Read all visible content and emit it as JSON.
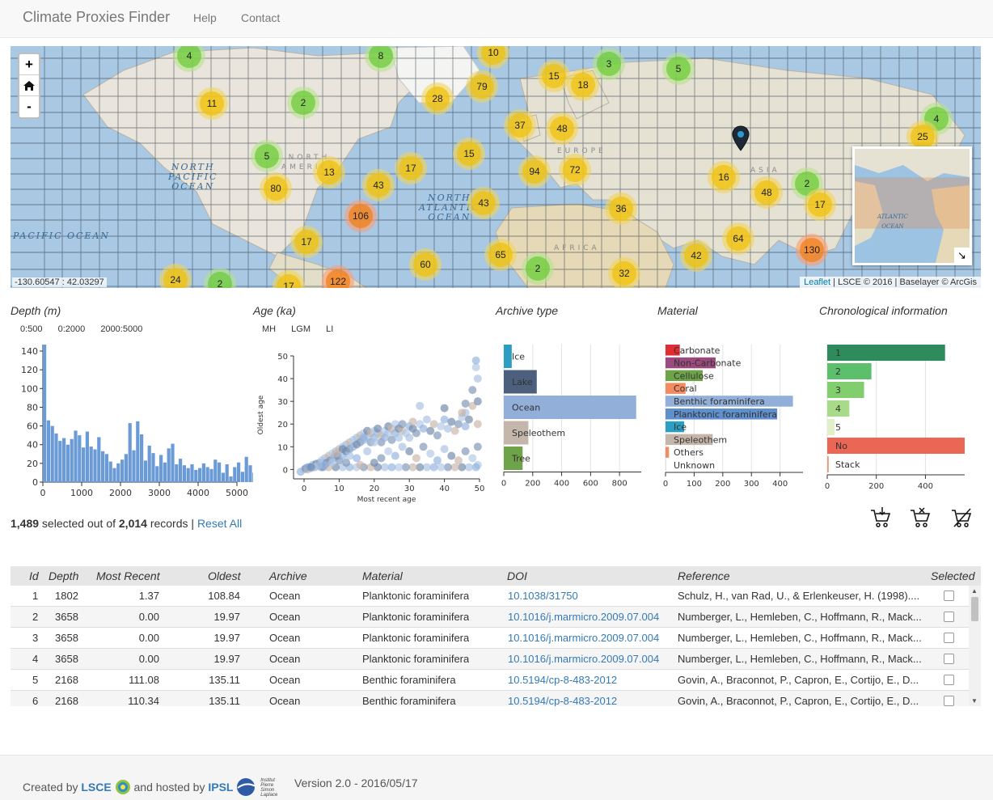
{
  "navbar": {
    "brand": "Climate Proxies Finder",
    "links": [
      "Help",
      "Contact"
    ]
  },
  "map": {
    "zoom_in": "+",
    "home_icon": "home-icon",
    "zoom_out": "-",
    "coordinates": "-130.60547 : 42.03297",
    "attribution_link": "Leaflet",
    "attribution_rest": " | LSCE © 2016 | Baselayer © ArcGis",
    "labels": {
      "north_pacific": "NORTH\nPACIFIC\nOCEAN",
      "north_atlantic": "NORTH\nATLANTIC\nOCEAN",
      "pacific": "PACIFIC OCEAN",
      "north_america": "NORTH\nAMERICA",
      "europe": "EUROPE",
      "asia": "ASIA",
      "africa": "AFRICA",
      "minimap_ocean": "ATLANTIC\nOCEAN"
    },
    "clusters": [
      {
        "count": "4",
        "color": "g"
      },
      {
        "count": "8",
        "color": "g"
      },
      {
        "count": "10",
        "color": "y"
      },
      {
        "count": "3",
        "color": "g"
      },
      {
        "count": "5",
        "color": "g"
      },
      {
        "count": "11",
        "color": "y"
      },
      {
        "count": "2",
        "color": "g"
      },
      {
        "count": "28",
        "color": "y"
      },
      {
        "count": "79",
        "color": "y"
      },
      {
        "count": "15",
        "color": "y"
      },
      {
        "count": "18",
        "color": "y"
      },
      {
        "count": "37",
        "color": "y"
      },
      {
        "count": "48",
        "color": "y"
      },
      {
        "count": "4",
        "color": "g"
      },
      {
        "count": "25",
        "color": "y"
      },
      {
        "count": "5",
        "color": "g"
      },
      {
        "count": "13",
        "color": "y"
      },
      {
        "count": "17",
        "color": "y"
      },
      {
        "count": "15",
        "color": "y"
      },
      {
        "count": "94",
        "color": "y"
      },
      {
        "count": "72",
        "color": "y"
      },
      {
        "count": "16",
        "color": "y"
      },
      {
        "count": "2",
        "color": "g"
      },
      {
        "count": "80",
        "color": "y"
      },
      {
        "count": "43",
        "color": "y"
      },
      {
        "count": "48",
        "color": "y"
      },
      {
        "count": "17",
        "color": "y"
      },
      {
        "count": "106",
        "color": "o"
      },
      {
        "count": "43",
        "color": "y"
      },
      {
        "count": "36",
        "color": "y"
      },
      {
        "count": "17",
        "color": "y"
      },
      {
        "count": "64",
        "color": "y"
      },
      {
        "count": "130",
        "color": "o"
      },
      {
        "count": "65",
        "color": "y"
      },
      {
        "count": "42",
        "color": "y"
      },
      {
        "count": "60",
        "color": "y"
      },
      {
        "count": "2",
        "color": "g"
      },
      {
        "count": "32",
        "color": "y"
      },
      {
        "count": "24",
        "color": "y"
      },
      {
        "count": "2",
        "color": "g"
      },
      {
        "count": "17",
        "color": "y"
      },
      {
        "count": "122",
        "color": "o"
      }
    ]
  },
  "panels": {
    "depth": {
      "title": "Depth (m)",
      "filters": [
        "0:500",
        "0:2000",
        "2000:5000"
      ]
    },
    "age": {
      "title": "Age (ka)",
      "filters": [
        "MH",
        "LGM",
        "LI"
      ]
    },
    "archive": {
      "title": "Archive type"
    },
    "material": {
      "title": "Material"
    },
    "chrono": {
      "title": "Chronological information"
    }
  },
  "chart_data": [
    {
      "type": "bar",
      "title": "Depth (m)",
      "xlabel": "",
      "ylabel": "",
      "xlim": [
        0,
        5000
      ],
      "ylim": [
        0,
        140
      ],
      "bin_width": 100,
      "xticks": [
        0,
        1000,
        2000,
        3000,
        4000,
        5000
      ],
      "yticks": [
        0,
        20,
        40,
        60,
        80,
        100,
        120,
        140
      ],
      "values": [
        148,
        66,
        60,
        52,
        44,
        47,
        40,
        46,
        55,
        50,
        37,
        54,
        38,
        35,
        48,
        33,
        30,
        22,
        15,
        20,
        24,
        30,
        63,
        34,
        65,
        51,
        23,
        39,
        31,
        17,
        29,
        21,
        36,
        41,
        19,
        25,
        18,
        15,
        19,
        13,
        15,
        20,
        16,
        14,
        24,
        21,
        10,
        19,
        6,
        16,
        21,
        11,
        27,
        18,
        10,
        20,
        17,
        3,
        9,
        16,
        13,
        25,
        4,
        17,
        6,
        6,
        5,
        6,
        4,
        5
      ]
    },
    {
      "type": "scatter",
      "title": "Age (ka)",
      "xlabel": "Most recent age",
      "ylabel": "Oldest age",
      "xlim": [
        -3,
        50
      ],
      "ylim": [
        -2,
        50
      ],
      "xticks": [
        0,
        10,
        20,
        30,
        40,
        50
      ],
      "yticks": [
        0,
        10,
        20,
        30,
        40,
        50
      ],
      "points": [
        [
          -1,
          -1
        ],
        [
          0,
          0
        ],
        [
          0.5,
          0.5
        ],
        [
          1,
          0
        ],
        [
          1.5,
          1
        ],
        [
          2,
          0.5
        ],
        [
          2.5,
          2
        ],
        [
          3,
          1
        ],
        [
          3.5,
          2.5
        ],
        [
          4,
          2
        ],
        [
          4.5,
          3
        ],
        [
          5,
          4
        ],
        [
          5.5,
          1
        ],
        [
          6,
          5
        ],
        [
          6.5,
          3
        ],
        [
          7,
          6
        ],
        [
          7.5,
          4
        ],
        [
          8,
          7
        ],
        [
          8.5,
          5
        ],
        [
          9,
          8
        ],
        [
          9.5,
          6
        ],
        [
          10,
          9
        ],
        [
          10,
          4
        ],
        [
          11,
          10
        ],
        [
          11,
          6
        ],
        [
          12,
          11
        ],
        [
          12,
          8
        ],
        [
          13,
          12
        ],
        [
          13,
          9
        ],
        [
          14,
          13
        ],
        [
          14,
          10
        ],
        [
          15,
          14
        ],
        [
          15,
          11
        ],
        [
          16,
          15
        ],
        [
          16,
          12
        ],
        [
          17,
          16
        ],
        [
          17,
          13
        ],
        [
          18,
          15
        ],
        [
          18,
          17
        ],
        [
          19,
          16
        ],
        [
          19,
          12
        ],
        [
          20,
          17
        ],
        [
          20,
          14
        ],
        [
          21,
          16
        ],
        [
          21,
          18
        ],
        [
          22,
          15
        ],
        [
          22,
          12
        ],
        [
          23,
          17
        ],
        [
          23,
          14
        ],
        [
          24,
          16
        ],
        [
          24,
          19
        ],
        [
          25,
          18
        ],
        [
          25,
          13
        ],
        [
          26,
          20
        ],
        [
          26,
          16
        ],
        [
          27,
          14
        ],
        [
          27,
          18
        ],
        [
          28,
          17
        ],
        [
          28,
          20
        ],
        [
          29,
          16
        ],
        [
          30,
          19
        ],
        [
          30,
          14
        ],
        [
          31,
          18
        ],
        [
          31,
          21
        ],
        [
          32,
          16
        ],
        [
          33,
          20
        ],
        [
          34,
          18
        ],
        [
          35,
          22
        ],
        [
          36,
          17
        ],
        [
          37,
          20
        ],
        [
          38,
          15
        ],
        [
          39,
          19
        ],
        [
          40,
          22
        ],
        [
          41,
          18
        ],
        [
          42,
          21
        ],
        [
          43,
          17
        ],
        [
          44,
          20
        ],
        [
          45,
          23
        ],
        [
          46,
          19
        ],
        [
          46,
          25
        ],
        [
          47,
          22
        ],
        [
          48,
          28
        ],
        [
          48,
          35
        ],
        [
          49,
          45
        ],
        [
          49,
          48
        ],
        [
          49.5,
          40
        ],
        [
          49.5,
          30
        ],
        [
          49.5,
          20
        ],
        [
          49.5,
          10
        ],
        [
          49.5,
          2
        ],
        [
          49,
          1
        ],
        [
          47,
          1
        ],
        [
          45,
          1
        ],
        [
          43,
          1
        ],
        [
          41,
          1
        ],
        [
          39,
          1
        ],
        [
          37,
          1
        ],
        [
          35,
          1
        ],
        [
          33,
          1
        ],
        [
          31,
          1
        ],
        [
          29,
          1
        ],
        [
          27,
          1
        ],
        [
          25,
          1
        ],
        [
          23,
          1
        ],
        [
          21,
          1
        ],
        [
          19,
          1
        ],
        [
          17,
          1
        ],
        [
          15,
          1
        ],
        [
          13,
          1
        ],
        [
          11,
          1
        ],
        [
          9,
          1
        ],
        [
          7,
          1
        ],
        [
          5,
          1
        ],
        [
          3,
          1
        ],
        [
          1,
          1
        ],
        [
          33,
          28
        ],
        [
          40,
          27
        ],
        [
          45,
          25
        ],
        [
          46,
          29
        ],
        [
          20,
          12
        ],
        [
          17,
          14
        ],
        [
          13,
          6
        ],
        [
          11,
          9
        ],
        [
          9,
          7
        ],
        [
          22,
          5
        ],
        [
          24,
          8
        ],
        [
          26,
          6
        ],
        [
          28,
          10
        ],
        [
          30,
          8
        ],
        [
          32,
          5
        ],
        [
          34,
          10
        ],
        [
          36,
          7
        ],
        [
          38,
          4
        ],
        [
          40,
          9
        ],
        [
          42,
          6
        ],
        [
          44,
          4
        ],
        [
          46,
          8
        ],
        [
          48,
          5
        ],
        [
          15,
          5
        ],
        [
          18,
          8
        ],
        [
          20,
          3
        ],
        [
          16,
          2
        ],
        [
          12,
          3
        ],
        [
          8,
          3
        ],
        [
          6,
          2
        ],
        [
          4,
          1.5
        ],
        [
          2,
          1
        ]
      ]
    },
    {
      "type": "bar",
      "title": "Archive type",
      "orientation": "horizontal",
      "categories": [
        "Ice",
        "Lake",
        "Ocean",
        "Speleothem",
        "Tree"
      ],
      "values": [
        55,
        228,
        915,
        170,
        130
      ],
      "colors": [
        "#2b9ec2",
        "#4c5f7c",
        "#91afd9",
        "#c5b6ab",
        "#6fa34a"
      ],
      "xlim": [
        0,
        950
      ],
      "xticks": [
        0,
        200,
        400,
        600,
        800
      ]
    },
    {
      "type": "bar",
      "title": "Material",
      "orientation": "horizontal",
      "categories": [
        "Carbonate",
        "Non-Carbonate",
        "Cellulose",
        "Coral",
        "Benthic foraminifera",
        "Planktonic foraminifera",
        "Ice",
        "Speleothem",
        "Others",
        "Unknown"
      ],
      "values": [
        50,
        175,
        130,
        70,
        445,
        390,
        65,
        165,
        12,
        2
      ],
      "colors": [
        "#e02d34",
        "#9a4a7c",
        "#6fa34a",
        "#f48a5f",
        "#91afd9",
        "#5f8fcc",
        "#2b9ec2",
        "#c5b6ab",
        "#f48a5f",
        "#e0e0e0"
      ],
      "xlim": [
        0,
        480
      ],
      "xticks": [
        0,
        100,
        200,
        300,
        400
      ]
    },
    {
      "type": "bar",
      "title": "Chronological information",
      "orientation": "horizontal",
      "categories": [
        "1",
        "2",
        "3",
        "4",
        "5",
        "No",
        "Stack"
      ],
      "values": [
        480,
        180,
        150,
        90,
        30,
        560,
        6
      ],
      "colors": [
        "#2e8b5c",
        "#5bbf6b",
        "#82cd6e",
        "#a8db88",
        "#e1f0c8",
        "#ea6655",
        "#e89a7e"
      ],
      "xlim": [
        0,
        560
      ],
      "xticks": [
        0,
        200,
        400
      ]
    }
  ],
  "summary": {
    "selected": "1,489",
    "selected_text": " selected out of ",
    "total": "2,014",
    "records_text": " records | ",
    "reset": "Reset All"
  },
  "cart": {
    "add_icon": "cart-add-icon",
    "remove_icon": "cart-remove-icon",
    "clear_icon": "cart-clear-icon"
  },
  "table": {
    "headers": [
      "Id",
      "Depth",
      "Most Recent",
      "Oldest",
      "Archive",
      "Material",
      "DOI",
      "Reference",
      "Selected"
    ],
    "rows": [
      {
        "id": "1",
        "depth": "1802",
        "recent": "1.37",
        "oldest": "108.84",
        "archive": "Ocean",
        "material": "Planktonic foraminifera",
        "doi": "10.1038/31750",
        "reference": "Schulz, H., van Rad, U., & Erlenkeuser, H. (1998)...."
      },
      {
        "id": "2",
        "depth": "3658",
        "recent": "0.00",
        "oldest": "19.97",
        "archive": "Ocean",
        "material": "Planktonic foraminifera",
        "doi": "10.1016/j.marmicro.2009.07.004",
        "reference": "Numberger, L., Hemleben, C., Hoffmann, R., Mack..."
      },
      {
        "id": "3",
        "depth": "3658",
        "recent": "0.00",
        "oldest": "19.97",
        "archive": "Ocean",
        "material": "Planktonic foraminifera",
        "doi": "10.1016/j.marmicro.2009.07.004",
        "reference": "Numberger, L., Hemleben, C., Hoffmann, R., Mack..."
      },
      {
        "id": "4",
        "depth": "3658",
        "recent": "0.00",
        "oldest": "19.97",
        "archive": "Ocean",
        "material": "Planktonic foraminifera",
        "doi": "10.1016/j.marmicro.2009.07.004",
        "reference": "Numberger, L., Hemleben, C., Hoffmann, R., Mack..."
      },
      {
        "id": "5",
        "depth": "2168",
        "recent": "111.08",
        "oldest": "135.11",
        "archive": "Ocean",
        "material": "Benthic foraminifera",
        "doi": "10.5194/cp-8-483-2012",
        "reference": "Govin, A., Braconnot, P., Capron, E., Cortijo, E., D..."
      },
      {
        "id": "6",
        "depth": "2168",
        "recent": "110.34",
        "oldest": "135.11",
        "archive": "Ocean",
        "material": "Benthic foraminifera",
        "doi": "10.5194/cp-8-483-2012",
        "reference": "Govin, A., Braconnot, P., Capron, E., Cortijo, E., D..."
      }
    ]
  },
  "footer": {
    "created_by": "Created by ",
    "lsce": "LSCE",
    "hosted_by": " and hosted by ",
    "ipsl": "IPSL",
    "ipsl_logo_text": "Institut\nPierre\nSimon\nLaplace",
    "version": "Version 2.0 - 2016/05/17"
  }
}
